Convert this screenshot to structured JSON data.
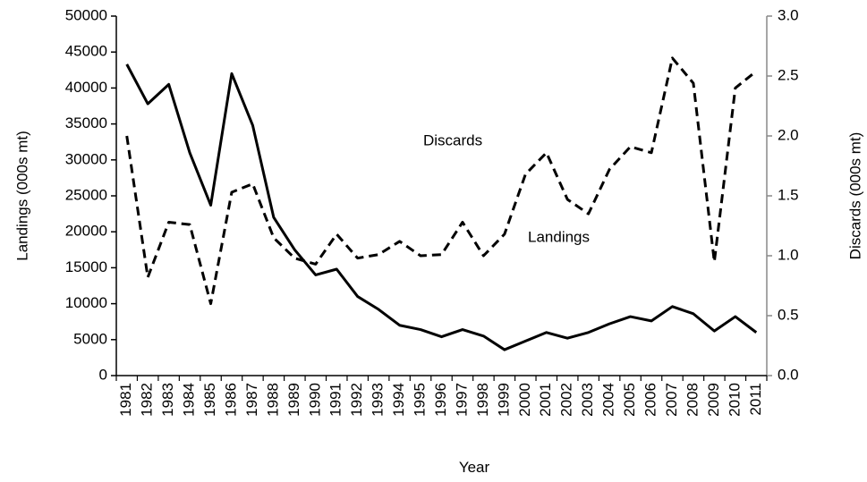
{
  "chart_data": {
    "type": "line",
    "x_label": "Year",
    "y_label": "Landings (000s mt)",
    "y2_label": "Discards (000s mt)",
    "categories": [
      "1981",
      "1982",
      "1983",
      "1984",
      "1985",
      "1986",
      "1987",
      "1988",
      "1989",
      "1990",
      "1991",
      "1992",
      "1993",
      "1994",
      "1995",
      "1996",
      "1997",
      "1998",
      "1999",
      "2000",
      "2001",
      "2002",
      "2003",
      "2004",
      "2005",
      "2006",
      "2007",
      "2008",
      "2009",
      "2010",
      "2011"
    ],
    "series": [
      {
        "name": "Landings",
        "color": "#000000",
        "dash": false,
        "values": [
          43300,
          37800,
          40500,
          31000,
          23700,
          42000,
          34800,
          22000,
          17500,
          14000,
          14800,
          11000,
          9200,
          7000,
          6400,
          5400,
          6400,
          5500,
          3600,
          4800,
          6000,
          5200,
          6000,
          7200,
          8200,
          7600,
          9600,
          8600,
          6200,
          8200,
          6000
        ]
      },
      {
        "name": "Discards",
        "color": "#000000",
        "dash": true,
        "axis": "y2",
        "values": [
          2.0,
          0.82,
          1.28,
          1.26,
          0.6,
          1.53,
          1.6,
          1.15,
          0.98,
          0.93,
          1.18,
          0.98,
          1.01,
          1.12,
          1.0,
          1.01,
          1.28,
          1.0,
          1.18,
          1.68,
          1.86,
          1.47,
          1.35,
          1.72,
          1.91,
          1.86,
          2.65,
          2.44,
          0.95,
          2.4,
          2.54
        ]
      }
    ],
    "ylim": [
      0,
      50000
    ],
    "yticks": [
      0,
      5000,
      10000,
      15000,
      20000,
      25000,
      30000,
      35000,
      40000,
      45000,
      50000
    ],
    "y2lim": [
      0,
      3
    ],
    "y2ticks": [
      {
        "value": 0,
        "label": "0.0"
      },
      {
        "value": 0.5,
        "label": "0.5"
      },
      {
        "value": 1,
        "label": "1.0"
      },
      {
        "value": 1.5,
        "label": "1.5"
      },
      {
        "value": 2,
        "label": "2.0"
      },
      {
        "value": 2.5,
        "label": "2.5"
      },
      {
        "value": 3,
        "label": "3.0"
      }
    ],
    "y2_axis_color": "#888888",
    "grid": false
  }
}
